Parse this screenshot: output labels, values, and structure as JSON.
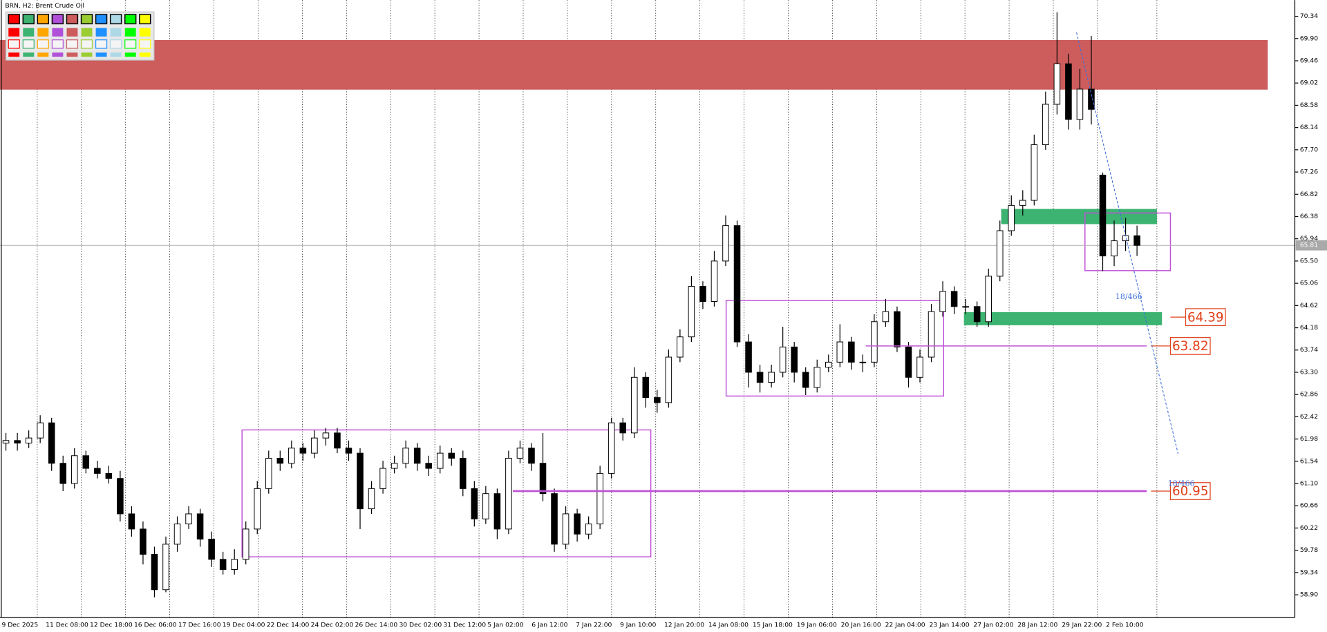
{
  "chart_data": {
    "type": "candlestick",
    "title": "BRN, H2: Brent Crude Oil",
    "x_labels": [
      "9 Dec 2025",
      "11 Dec 08:00",
      "12 Dec 18:00",
      "16 Dec 06:00",
      "17 Dec 16:00",
      "19 Dec 04:00",
      "22 Dec 14:00",
      "24 Dec 02:00",
      "26 Dec 14:00",
      "30 Dec 02:00",
      "31 Dec 12:00",
      "5 Jan 02:00",
      "6 Jan 12:00",
      "7 Jan 22:00",
      "9 Jan 10:00",
      "12 Jan 20:00",
      "14 Jan 08:00",
      "15 Jan 18:00",
      "19 Jan 06:00",
      "20 Jan 16:00",
      "22 Jan 04:00",
      "23 Jan 14:00",
      "27 Jan 02:00",
      "28 Jan 12:00",
      "29 Jan 22:00",
      "2 Feb 10:00"
    ],
    "open": [
      61.9,
      61.95,
      61.9,
      62.0,
      62.3,
      61.5,
      61.1,
      61.65,
      61.4,
      61.3,
      61.2,
      60.5,
      60.2,
      59.7,
      59.0,
      59.9,
      60.3,
      60.5,
      60.0,
      59.6,
      59.4,
      59.6,
      60.2,
      61.0,
      61.6,
      61.5,
      61.8,
      61.7,
      62.0,
      62.1,
      61.8,
      61.7,
      60.6,
      61.0,
      61.4,
      61.5,
      61.8,
      61.5,
      61.4,
      61.7,
      61.6,
      61.0,
      60.4,
      60.9,
      60.2,
      61.6,
      61.8,
      61.5,
      60.9,
      59.9,
      60.5,
      60.1,
      60.3,
      61.3,
      62.3,
      62.1,
      63.2,
      62.8,
      62.7,
      63.6,
      64.0,
      65.0,
      64.7,
      65.5,
      66.2,
      63.9,
      63.3,
      63.1,
      63.3,
      63.8,
      63.3,
      63.0,
      63.4,
      63.5,
      63.9,
      63.5,
      63.5,
      64.3,
      64.5,
      63.8,
      63.2,
      63.6,
      64.5,
      64.9,
      64.6,
      64.6,
      64.3,
      65.2,
      66.1,
      66.6,
      66.7,
      67.8,
      68.6,
      69.4,
      68.3,
      68.9,
      67.2,
      65.6,
      65.9,
      66.0
    ],
    "high": [
      62.1,
      62.1,
      62.15,
      62.45,
      62.4,
      61.65,
      61.8,
      61.75,
      61.55,
      61.45,
      61.35,
      60.65,
      60.35,
      59.85,
      60.05,
      60.45,
      60.65,
      60.6,
      60.15,
      59.75,
      59.8,
      60.35,
      61.15,
      61.75,
      61.75,
      61.95,
      61.9,
      62.15,
      62.2,
      62.2,
      61.95,
      61.8,
      61.15,
      61.55,
      61.65,
      61.95,
      61.9,
      61.65,
      61.85,
      61.8,
      61.75,
      61.15,
      61.05,
      61.0,
      61.75,
      61.95,
      61.9,
      62.1,
      61.0,
      60.65,
      60.6,
      60.45,
      61.45,
      62.4,
      62.4,
      63.4,
      63.3,
      62.95,
      63.75,
      64.15,
      65.2,
      65.1,
      65.7,
      66.4,
      66.3,
      64.05,
      63.45,
      63.45,
      64.2,
      63.9,
      63.4,
      63.55,
      63.65,
      64.25,
      64.0,
      63.65,
      64.45,
      64.75,
      64.6,
      63.9,
      63.75,
      64.65,
      65.1,
      65.0,
      64.75,
      64.7,
      65.35,
      66.3,
      66.8,
      66.9,
      68.0,
      68.85,
      70.42,
      69.6,
      69.3,
      69.95,
      67.25,
      66.3,
      66.35,
      66.2
    ],
    "low": [
      61.75,
      61.75,
      61.8,
      61.9,
      61.35,
      60.95,
      61.0,
      61.3,
      61.2,
      61.1,
      60.35,
      60.05,
      59.5,
      58.85,
      58.95,
      59.75,
      60.2,
      59.85,
      59.45,
      59.3,
      59.3,
      59.5,
      60.1,
      60.9,
      61.35,
      61.4,
      61.55,
      61.6,
      61.85,
      61.7,
      61.55,
      60.2,
      60.5,
      60.9,
      61.3,
      61.4,
      61.35,
      61.25,
      61.3,
      61.45,
      60.85,
      60.25,
      60.3,
      60.0,
      60.1,
      61.5,
      61.35,
      60.75,
      59.75,
      59.8,
      59.95,
      60.0,
      60.2,
      61.2,
      61.95,
      62.0,
      62.6,
      62.5,
      62.6,
      63.5,
      63.9,
      64.55,
      64.6,
      65.4,
      63.8,
      63.0,
      62.9,
      63.0,
      63.2,
      63.1,
      62.85,
      62.9,
      63.3,
      63.4,
      63.35,
      63.3,
      63.4,
      64.2,
      63.7,
      63.0,
      63.1,
      63.5,
      64.4,
      64.45,
      64.45,
      64.2,
      64.2,
      65.1,
      66.0,
      66.4,
      66.6,
      67.7,
      68.4,
      68.1,
      68.1,
      68.2,
      65.3,
      65.4,
      65.7,
      65.6
    ],
    "close": [
      61.95,
      61.9,
      62.0,
      62.3,
      61.5,
      61.1,
      61.65,
      61.4,
      61.3,
      61.2,
      60.5,
      60.2,
      59.7,
      59.0,
      59.9,
      60.3,
      60.5,
      60.0,
      59.6,
      59.4,
      59.6,
      60.2,
      61.0,
      61.6,
      61.5,
      61.8,
      61.7,
      62.0,
      62.1,
      61.8,
      61.7,
      60.6,
      61.0,
      61.4,
      61.5,
      61.8,
      61.5,
      61.4,
      61.7,
      61.6,
      61.0,
      60.4,
      60.9,
      60.2,
      61.6,
      61.8,
      61.5,
      60.9,
      59.9,
      60.5,
      60.1,
      60.3,
      61.3,
      62.3,
      62.1,
      63.2,
      62.8,
      62.7,
      63.6,
      64.0,
      65.0,
      64.7,
      65.5,
      66.2,
      63.9,
      63.3,
      63.1,
      63.3,
      63.8,
      63.3,
      63.0,
      63.4,
      63.5,
      63.9,
      63.5,
      63.5,
      64.3,
      64.5,
      63.8,
      63.2,
      63.6,
      64.5,
      64.9,
      64.6,
      64.6,
      64.3,
      65.2,
      66.1,
      66.6,
      66.7,
      67.8,
      68.6,
      69.4,
      68.3,
      68.9,
      68.5,
      65.6,
      65.9,
      66.0,
      65.81
    ],
    "ylim": [
      58.45,
      70.66
    ],
    "yticks": [
      70.34,
      {
        "value": 69.9,
        "label": "69.90"
      },
      69.46,
      69.02,
      68.58,
      68.14,
      {
        "value": 67.7,
        "label": "67.70"
      },
      67.26,
      66.82,
      66.38,
      65.94,
      {
        "value": 65.5,
        "label": "65.50"
      },
      65.06,
      64.62,
      64.18,
      63.74,
      {
        "value": 63.3,
        "label": "63.30"
      },
      62.86,
      62.42,
      61.98,
      61.54,
      {
        "value": 61.1,
        "label": "61.10"
      },
      60.66,
      60.22,
      59.78,
      59.34,
      {
        "value": 58.9,
        "label": "58.90"
      }
    ],
    "current_price": 65.81,
    "zones": [
      {
        "range": [
          68.89,
          69.87
        ],
        "color": "#cd5c5c"
      },
      {
        "range": [
          66.23,
          66.53
        ],
        "color": "#3cb371"
      },
      {
        "range": [
          64.23,
          64.49
        ],
        "color": "#3cb371"
      }
    ],
    "boxes": [
      {
        "range": [
          59.65,
          62.16
        ],
        "color": "#c050d8"
      },
      {
        "range": [
          62.83,
          64.72
        ],
        "color": "#c050d8"
      },
      {
        "range": [
          65.31,
          66.45
        ],
        "color": "#c050d8"
      }
    ],
    "levels": [
      {
        "value": 64.39,
        "color": "#e0401a"
      },
      {
        "value": 63.82,
        "color": "#e0401a"
      },
      {
        "value": 60.95,
        "color": "#e0401a"
      }
    ],
    "trendline": {
      "values": [
        70.02,
        61.69
      ],
      "color": "#3d6fdc"
    },
    "trend_labels": [
      "18/466",
      "18/466"
    ]
  }
}
